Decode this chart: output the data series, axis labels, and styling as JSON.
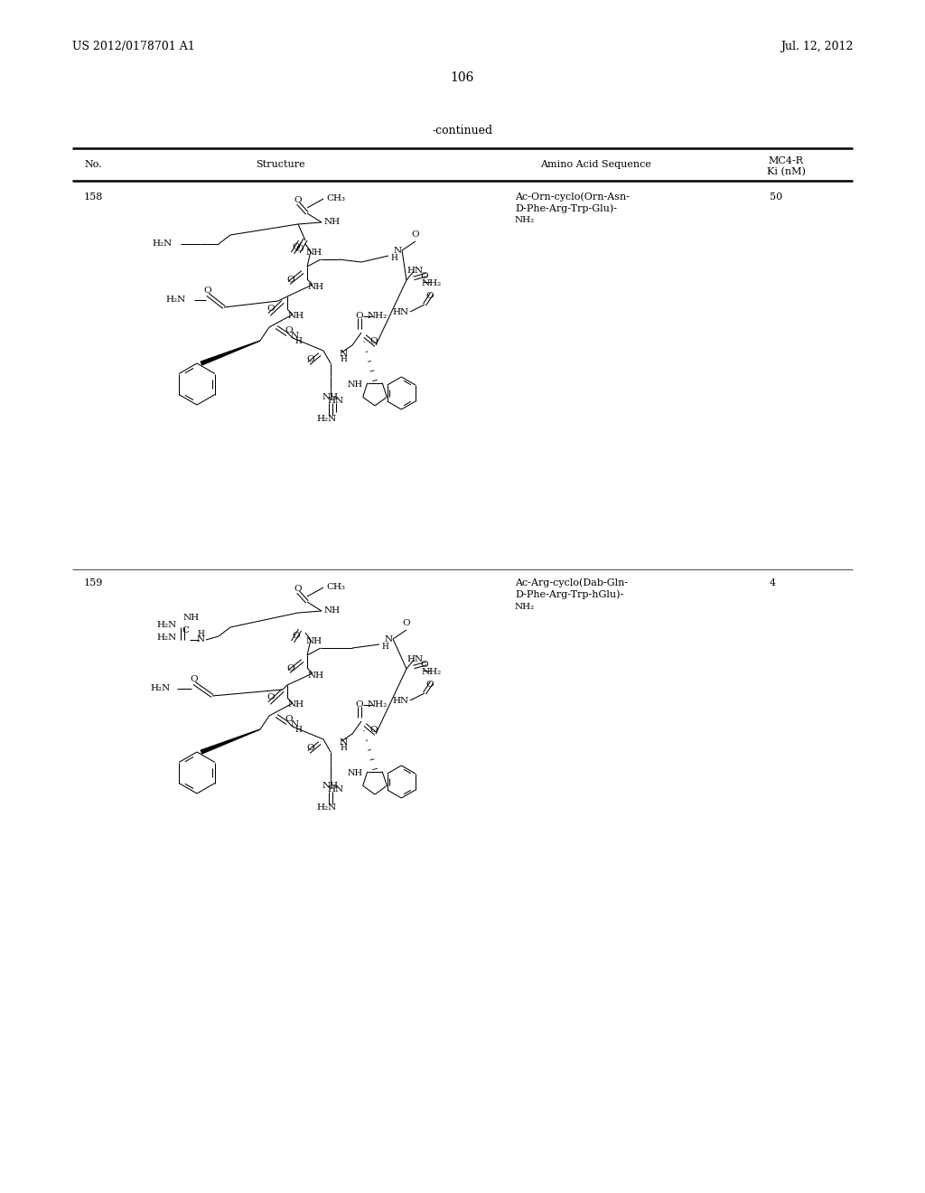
{
  "background_color": "#ffffff",
  "page_number": "106",
  "header_left": "US 2012/0178701 A1",
  "header_right": "Jul. 12, 2012",
  "continued_label": "-continued",
  "table_col1": "No.",
  "table_col2": "Structure",
  "table_col3": "Amino Acid Sequence",
  "table_col4a": "MC4-R",
  "table_col4b": "Ki (nM)",
  "row158_no": "158",
  "row158_seq1": "Ac-Orn-cyclo(Orn-Asn-",
  "row158_seq2": "D-Phe-Arg-Trp-Glu)-",
  "row158_seq3": "NH₂",
  "row158_ki": "50",
  "row159_no": "159",
  "row159_seq1": "Ac-Arg-cyclo(Dab-Gln-",
  "row159_seq2": "D-Phe-Arg-Trp-hGlu)-",
  "row159_seq3": "NH₂",
  "row159_ki": "4"
}
